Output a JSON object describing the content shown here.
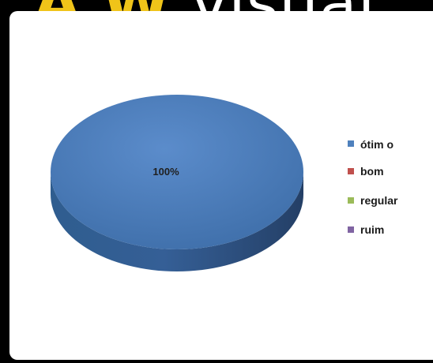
{
  "header": {
    "visible_text_a": "A",
    "visible_text_b": "W",
    "visible_text_c": "visual"
  },
  "chart_data": {
    "type": "pie",
    "title": "",
    "categories": [
      "ótim o",
      "bom",
      "regular",
      "ruim"
    ],
    "values": [
      100,
      0,
      0,
      0
    ],
    "colors": [
      "#4f81bd",
      "#c0504d",
      "#9bbb59",
      "#8064a2"
    ],
    "data_labels": [
      "100%"
    ],
    "legend_position": "right"
  }
}
